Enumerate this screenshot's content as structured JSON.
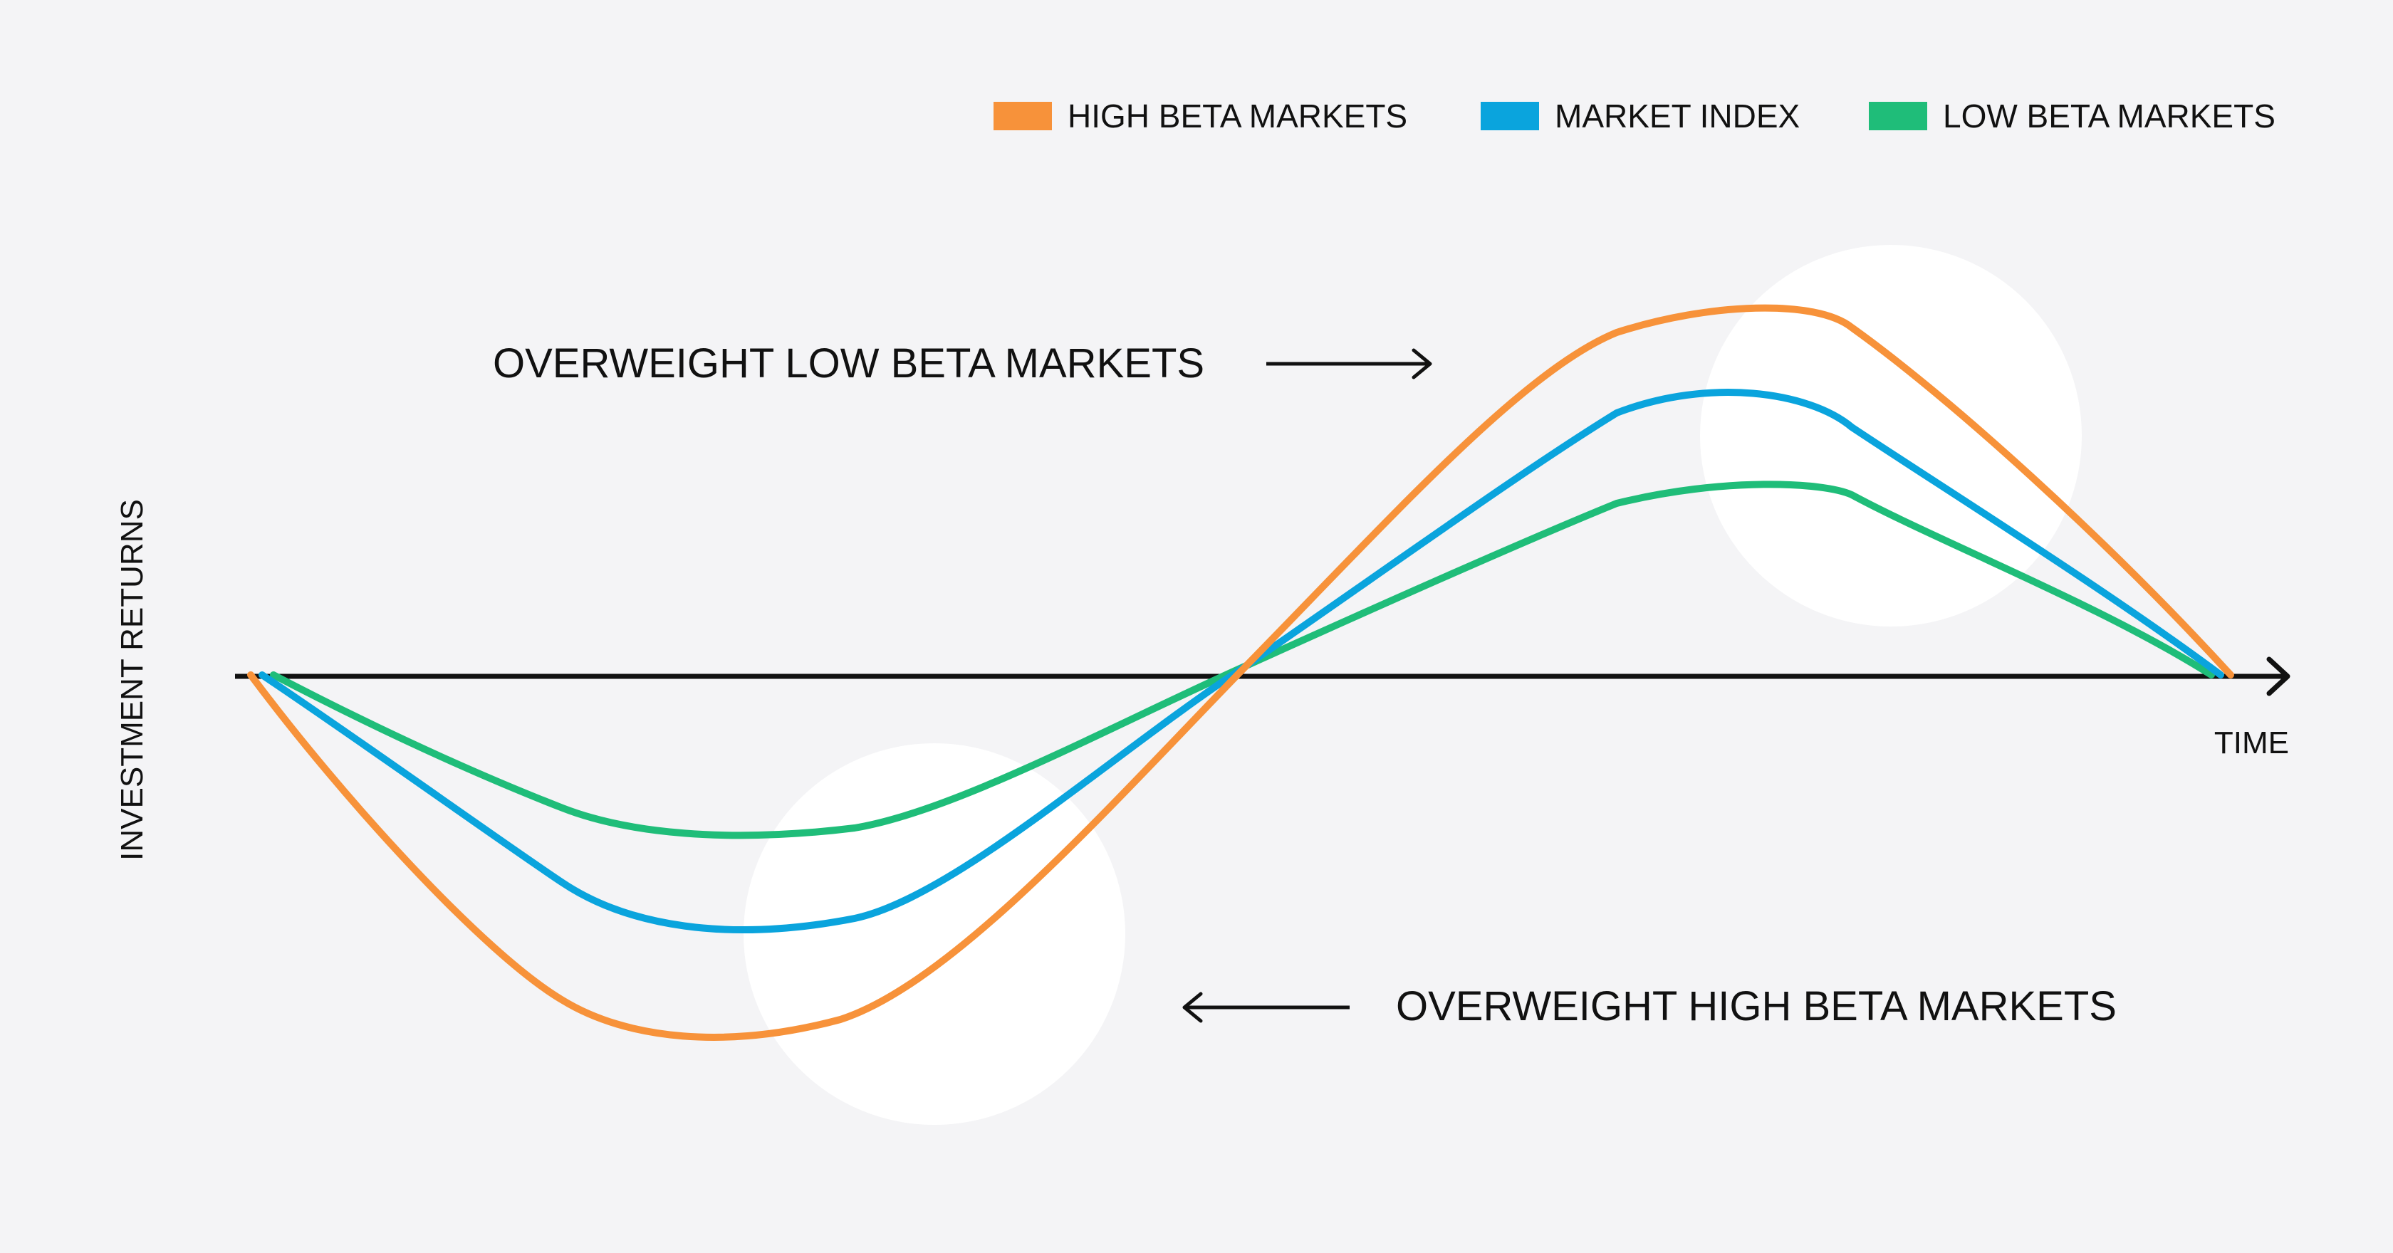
{
  "legend": [
    {
      "label": "HIGH BETA MARKETS",
      "color": "#f7923a"
    },
    {
      "label": "MARKET INDEX",
      "color": "#0aa4dd"
    },
    {
      "label": "LOW BETA MARKETS",
      "color": "#1fbd79"
    }
  ],
  "annotations": {
    "top": "OVERWEIGHT LOW BETA MARKETS",
    "bottom": "OVERWEIGHT HIGH BETA MARKETS"
  },
  "axes": {
    "y_label": "INVESTMENT RETURNS",
    "x_label": "TIME"
  },
  "colors": {
    "background": "#f4f4f6",
    "axis": "#111111",
    "highlight_circle": "#ffffff"
  }
}
